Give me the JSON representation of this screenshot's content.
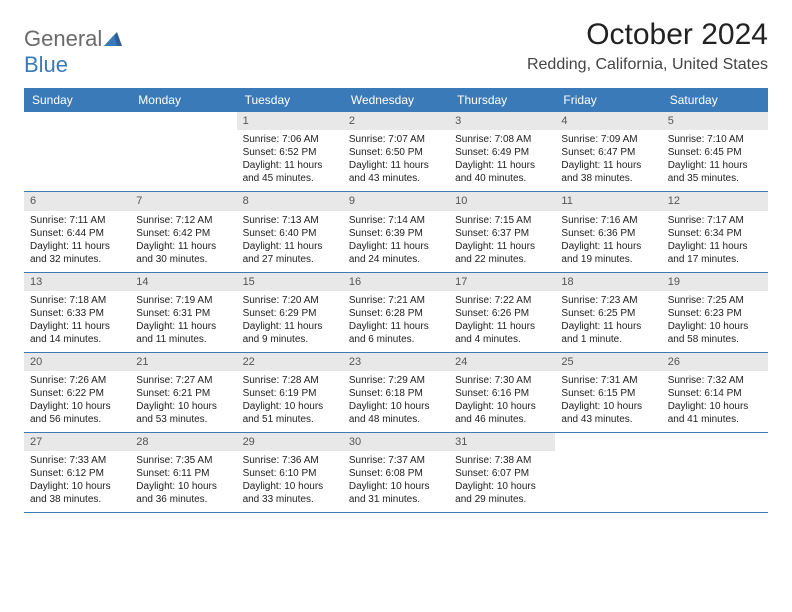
{
  "logo": {
    "part1": "General",
    "part2": "Blue"
  },
  "title": "October 2024",
  "location": "Redding, California, United States",
  "colors": {
    "header_bg": "#3a7ab8",
    "header_text": "#ffffff",
    "daynum_bg": "#e8e8e8",
    "border": "#3a7ab8",
    "logo_gray": "#6b6b6b",
    "logo_blue": "#3a7ab8"
  },
  "day_names": [
    "Sunday",
    "Monday",
    "Tuesday",
    "Wednesday",
    "Thursday",
    "Friday",
    "Saturday"
  ],
  "weeks": [
    [
      {
        "n": "",
        "sr": "",
        "ss": "",
        "dl": ""
      },
      {
        "n": "",
        "sr": "",
        "ss": "",
        "dl": ""
      },
      {
        "n": "1",
        "sr": "Sunrise: 7:06 AM",
        "ss": "Sunset: 6:52 PM",
        "dl": "Daylight: 11 hours and 45 minutes."
      },
      {
        "n": "2",
        "sr": "Sunrise: 7:07 AM",
        "ss": "Sunset: 6:50 PM",
        "dl": "Daylight: 11 hours and 43 minutes."
      },
      {
        "n": "3",
        "sr": "Sunrise: 7:08 AM",
        "ss": "Sunset: 6:49 PM",
        "dl": "Daylight: 11 hours and 40 minutes."
      },
      {
        "n": "4",
        "sr": "Sunrise: 7:09 AM",
        "ss": "Sunset: 6:47 PM",
        "dl": "Daylight: 11 hours and 38 minutes."
      },
      {
        "n": "5",
        "sr": "Sunrise: 7:10 AM",
        "ss": "Sunset: 6:45 PM",
        "dl": "Daylight: 11 hours and 35 minutes."
      }
    ],
    [
      {
        "n": "6",
        "sr": "Sunrise: 7:11 AM",
        "ss": "Sunset: 6:44 PM",
        "dl": "Daylight: 11 hours and 32 minutes."
      },
      {
        "n": "7",
        "sr": "Sunrise: 7:12 AM",
        "ss": "Sunset: 6:42 PM",
        "dl": "Daylight: 11 hours and 30 minutes."
      },
      {
        "n": "8",
        "sr": "Sunrise: 7:13 AM",
        "ss": "Sunset: 6:40 PM",
        "dl": "Daylight: 11 hours and 27 minutes."
      },
      {
        "n": "9",
        "sr": "Sunrise: 7:14 AM",
        "ss": "Sunset: 6:39 PM",
        "dl": "Daylight: 11 hours and 24 minutes."
      },
      {
        "n": "10",
        "sr": "Sunrise: 7:15 AM",
        "ss": "Sunset: 6:37 PM",
        "dl": "Daylight: 11 hours and 22 minutes."
      },
      {
        "n": "11",
        "sr": "Sunrise: 7:16 AM",
        "ss": "Sunset: 6:36 PM",
        "dl": "Daylight: 11 hours and 19 minutes."
      },
      {
        "n": "12",
        "sr": "Sunrise: 7:17 AM",
        "ss": "Sunset: 6:34 PM",
        "dl": "Daylight: 11 hours and 17 minutes."
      }
    ],
    [
      {
        "n": "13",
        "sr": "Sunrise: 7:18 AM",
        "ss": "Sunset: 6:33 PM",
        "dl": "Daylight: 11 hours and 14 minutes."
      },
      {
        "n": "14",
        "sr": "Sunrise: 7:19 AM",
        "ss": "Sunset: 6:31 PM",
        "dl": "Daylight: 11 hours and 11 minutes."
      },
      {
        "n": "15",
        "sr": "Sunrise: 7:20 AM",
        "ss": "Sunset: 6:29 PM",
        "dl": "Daylight: 11 hours and 9 minutes."
      },
      {
        "n": "16",
        "sr": "Sunrise: 7:21 AM",
        "ss": "Sunset: 6:28 PM",
        "dl": "Daylight: 11 hours and 6 minutes."
      },
      {
        "n": "17",
        "sr": "Sunrise: 7:22 AM",
        "ss": "Sunset: 6:26 PM",
        "dl": "Daylight: 11 hours and 4 minutes."
      },
      {
        "n": "18",
        "sr": "Sunrise: 7:23 AM",
        "ss": "Sunset: 6:25 PM",
        "dl": "Daylight: 11 hours and 1 minute."
      },
      {
        "n": "19",
        "sr": "Sunrise: 7:25 AM",
        "ss": "Sunset: 6:23 PM",
        "dl": "Daylight: 10 hours and 58 minutes."
      }
    ],
    [
      {
        "n": "20",
        "sr": "Sunrise: 7:26 AM",
        "ss": "Sunset: 6:22 PM",
        "dl": "Daylight: 10 hours and 56 minutes."
      },
      {
        "n": "21",
        "sr": "Sunrise: 7:27 AM",
        "ss": "Sunset: 6:21 PM",
        "dl": "Daylight: 10 hours and 53 minutes."
      },
      {
        "n": "22",
        "sr": "Sunrise: 7:28 AM",
        "ss": "Sunset: 6:19 PM",
        "dl": "Daylight: 10 hours and 51 minutes."
      },
      {
        "n": "23",
        "sr": "Sunrise: 7:29 AM",
        "ss": "Sunset: 6:18 PM",
        "dl": "Daylight: 10 hours and 48 minutes."
      },
      {
        "n": "24",
        "sr": "Sunrise: 7:30 AM",
        "ss": "Sunset: 6:16 PM",
        "dl": "Daylight: 10 hours and 46 minutes."
      },
      {
        "n": "25",
        "sr": "Sunrise: 7:31 AM",
        "ss": "Sunset: 6:15 PM",
        "dl": "Daylight: 10 hours and 43 minutes."
      },
      {
        "n": "26",
        "sr": "Sunrise: 7:32 AM",
        "ss": "Sunset: 6:14 PM",
        "dl": "Daylight: 10 hours and 41 minutes."
      }
    ],
    [
      {
        "n": "27",
        "sr": "Sunrise: 7:33 AM",
        "ss": "Sunset: 6:12 PM",
        "dl": "Daylight: 10 hours and 38 minutes."
      },
      {
        "n": "28",
        "sr": "Sunrise: 7:35 AM",
        "ss": "Sunset: 6:11 PM",
        "dl": "Daylight: 10 hours and 36 minutes."
      },
      {
        "n": "29",
        "sr": "Sunrise: 7:36 AM",
        "ss": "Sunset: 6:10 PM",
        "dl": "Daylight: 10 hours and 33 minutes."
      },
      {
        "n": "30",
        "sr": "Sunrise: 7:37 AM",
        "ss": "Sunset: 6:08 PM",
        "dl": "Daylight: 10 hours and 31 minutes."
      },
      {
        "n": "31",
        "sr": "Sunrise: 7:38 AM",
        "ss": "Sunset: 6:07 PM",
        "dl": "Daylight: 10 hours and 29 minutes."
      },
      {
        "n": "",
        "sr": "",
        "ss": "",
        "dl": ""
      },
      {
        "n": "",
        "sr": "",
        "ss": "",
        "dl": ""
      }
    ]
  ]
}
